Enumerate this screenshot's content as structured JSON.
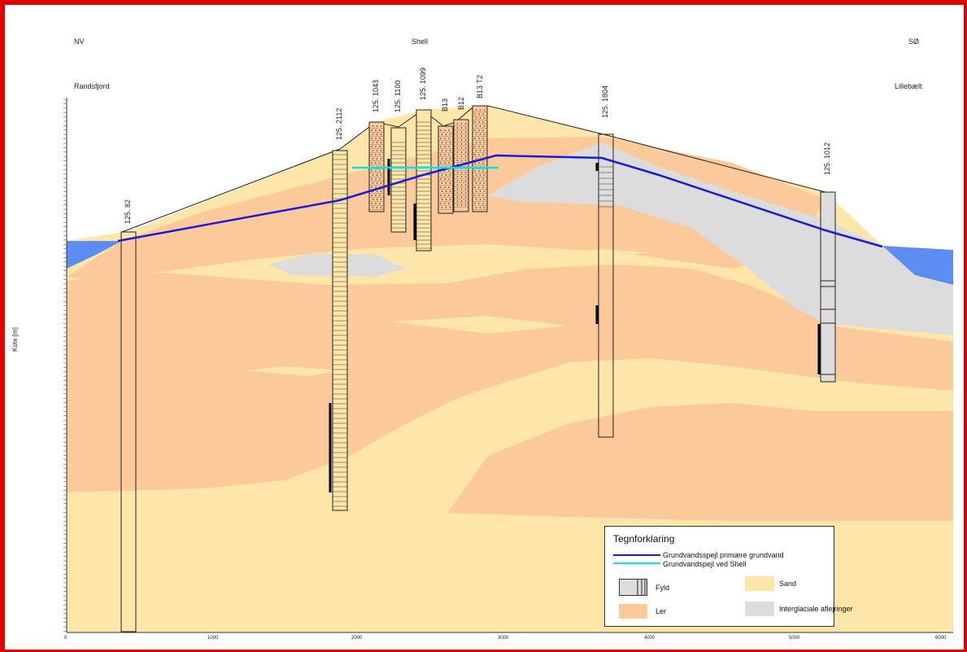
{
  "header": {
    "left_direction": "NV",
    "center_label": "Shell",
    "right_direction": "SØ",
    "left_place": "Randsfjord",
    "right_place": "Lillebælt"
  },
  "y_axis": {
    "label": "Kote [m]"
  },
  "x_axis": {
    "ticks": [
      "0",
      "1000",
      "2000",
      "3000",
      "4000",
      "5000",
      "6000"
    ]
  },
  "boreholes": [
    {
      "id": "125. 82"
    },
    {
      "id": "125. 2112"
    },
    {
      "id": "125. 1043"
    },
    {
      "id": "125. 1100"
    },
    {
      "id": "125. 1099"
    },
    {
      "id": "B13"
    },
    {
      "id": "B12"
    },
    {
      "id": "B13 T2"
    },
    {
      "id": "125. 1804"
    },
    {
      "id": "125. 1012"
    }
  ],
  "legend": {
    "title": "Tegnforklaring",
    "line_primary": "Grundvandsspejl primære grundvand",
    "line_shell": "Grundvandspejl ved Shell",
    "fyld": "Fyld",
    "sand": "Sand",
    "ler": "Ler",
    "interglacial": "Interglaciale aflejringer"
  },
  "colors": {
    "sand": "#fde6a8",
    "ler": "#fbc99a",
    "interglacial": "#dcdcdc",
    "water": "#5b8ef0",
    "groundwater_primary": "#1a1adb",
    "groundwater_shell": "#00e5ee",
    "frame": "#e00000"
  }
}
